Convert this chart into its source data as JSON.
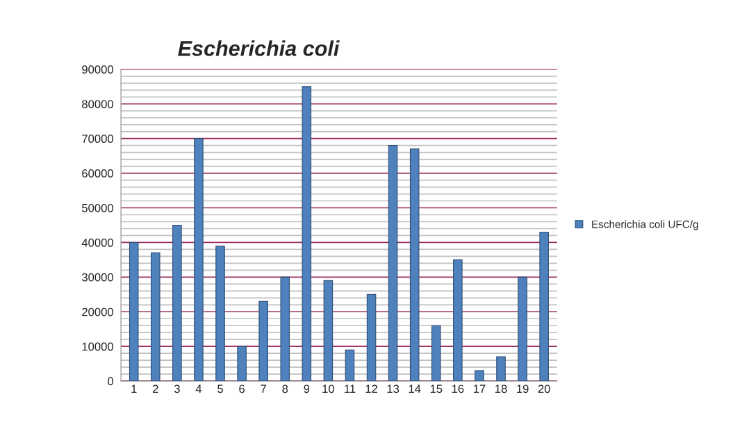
{
  "chart_data": {
    "type": "bar",
    "title": "Escherichia coli",
    "categories": [
      "1",
      "2",
      "3",
      "4",
      "5",
      "6",
      "7",
      "8",
      "9",
      "10",
      "11",
      "12",
      "13",
      "14",
      "15",
      "16",
      "17",
      "18",
      "19",
      "20"
    ],
    "series": [
      {
        "name": "Escherichia coli UFC/g",
        "color": "#4f81bd",
        "values": [
          40000,
          37000,
          45000,
          70000,
          39000,
          10000,
          23000,
          30000,
          85000,
          29000,
          9000,
          25000,
          68000,
          67000,
          16000,
          35000,
          3000,
          7000,
          30000,
          43000
        ]
      }
    ],
    "ylim": [
      0,
      90000
    ],
    "yticks": [
      0,
      10000,
      20000,
      30000,
      40000,
      50000,
      60000,
      70000,
      80000,
      90000
    ],
    "grid": "y",
    "legend": "right"
  }
}
